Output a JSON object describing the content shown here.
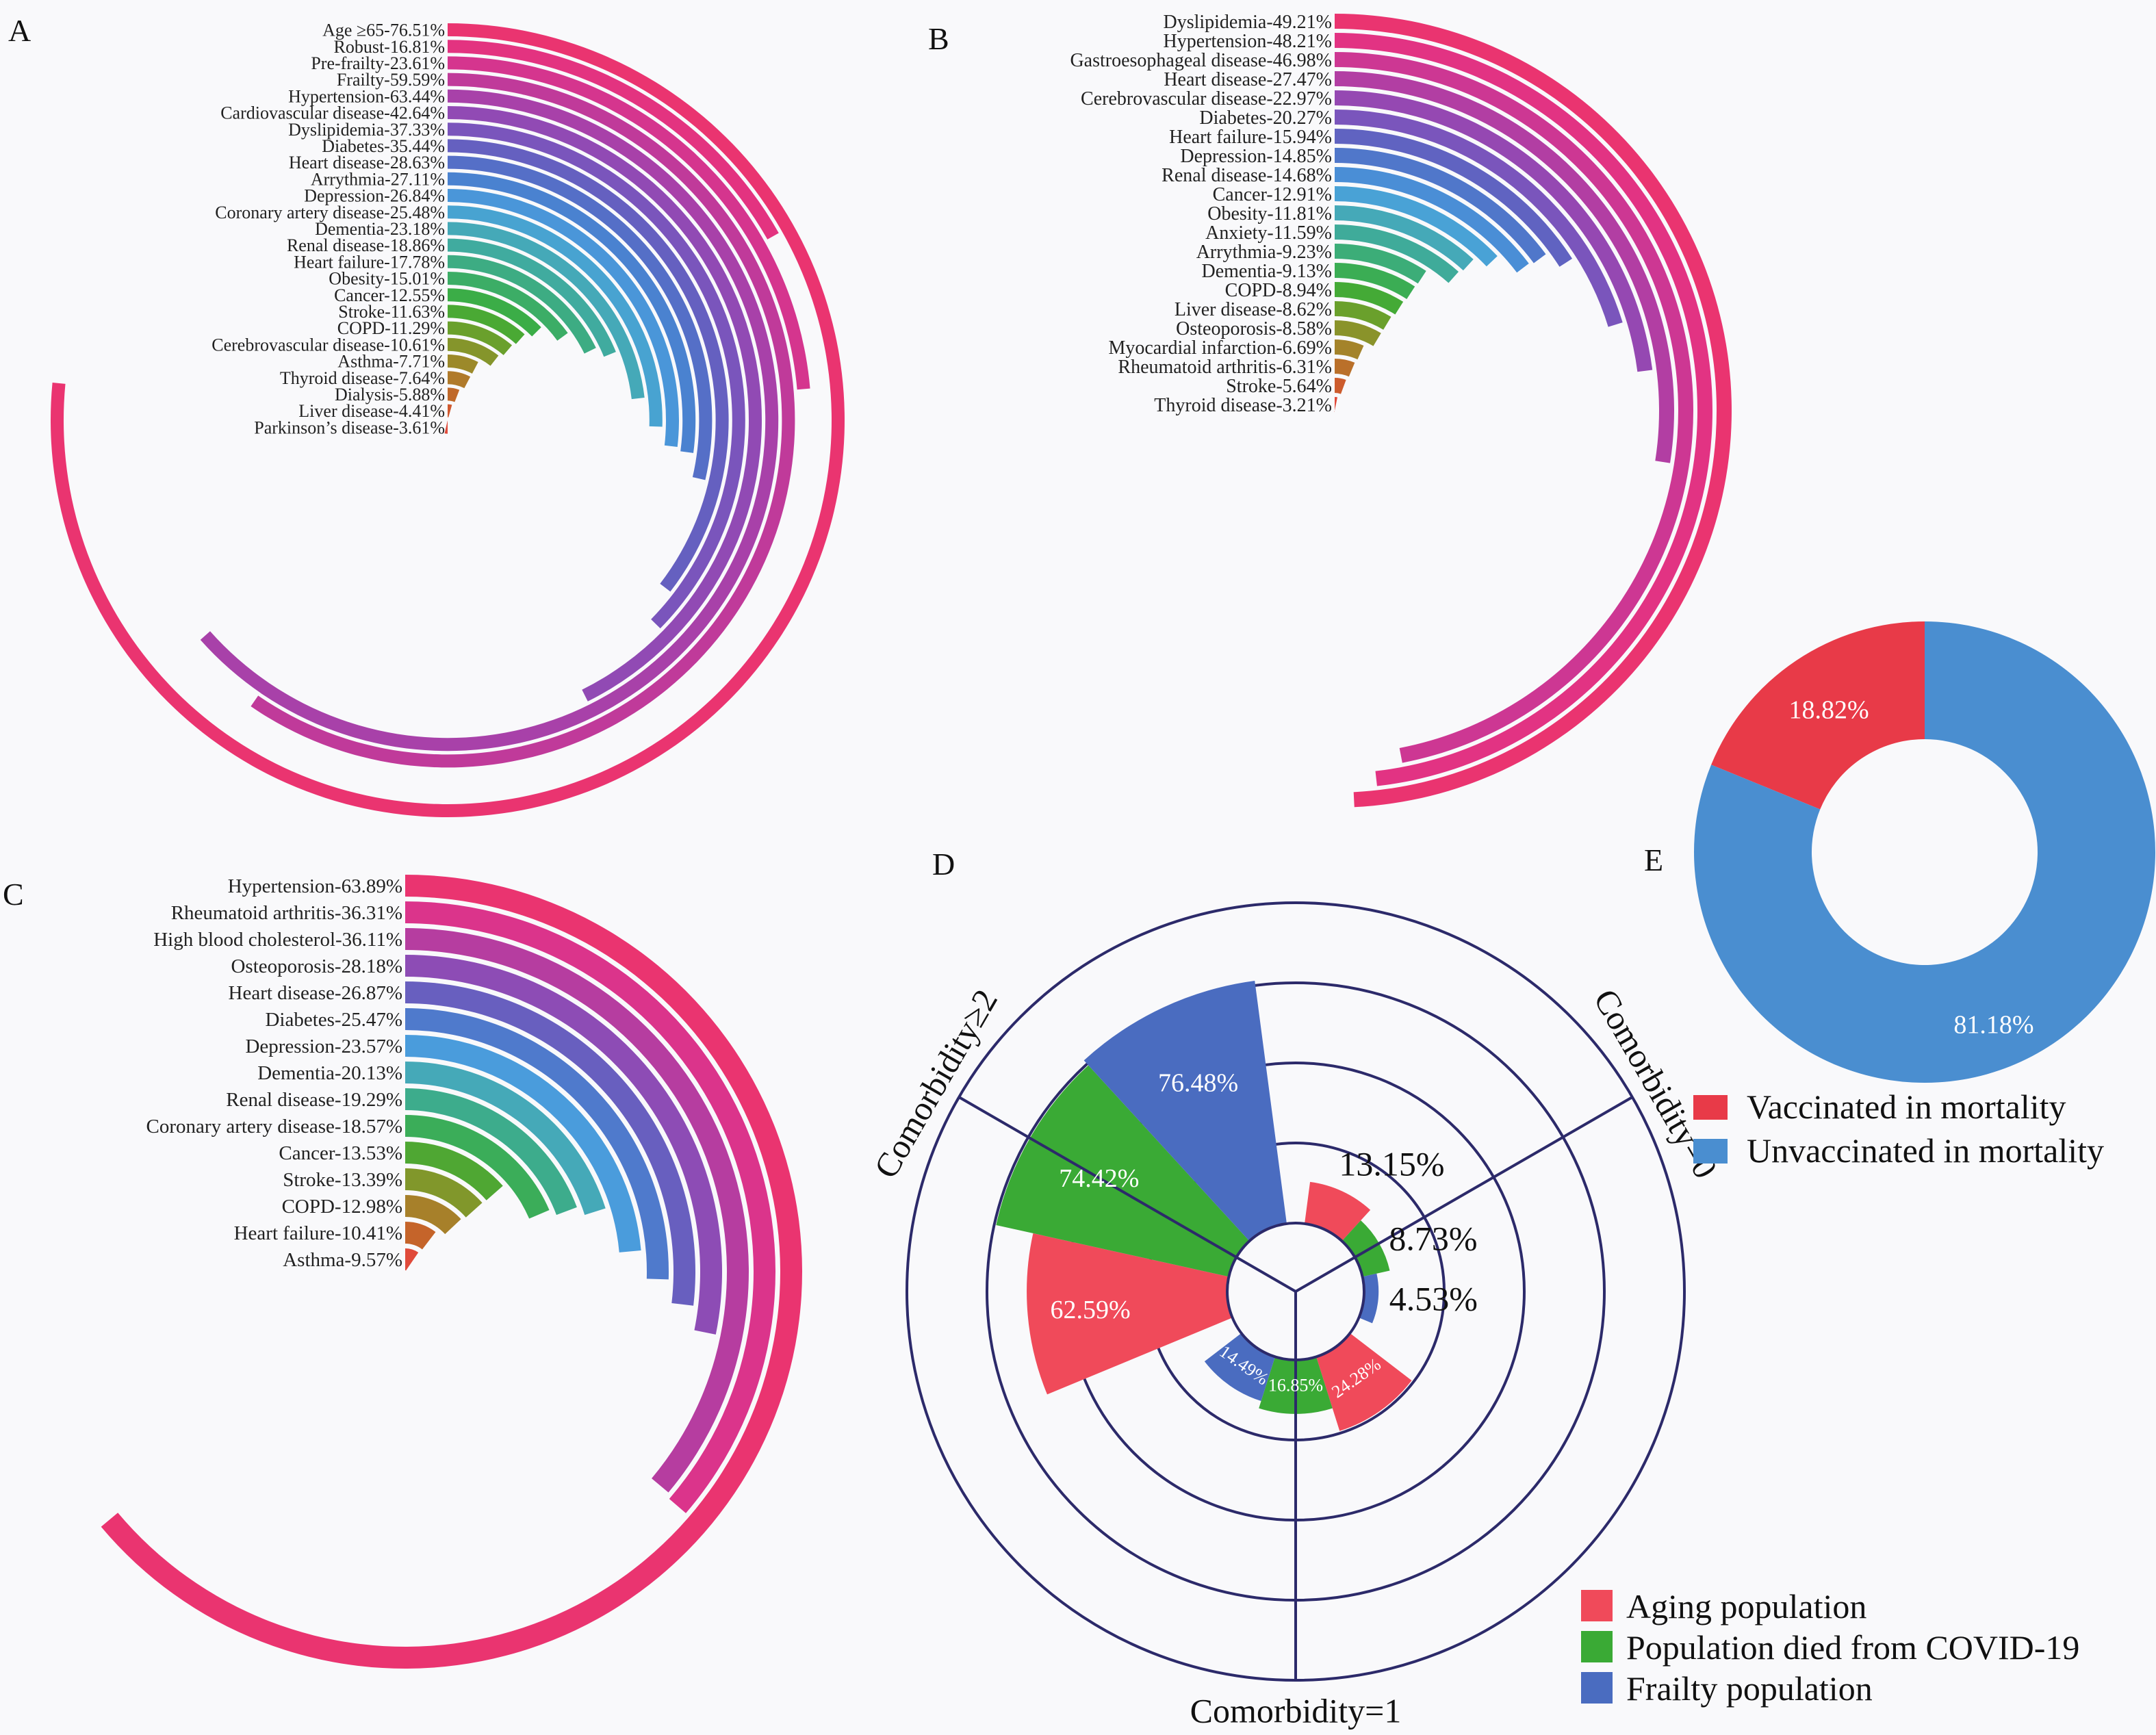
{
  "chart_data": [
    {
      "panel": "A",
      "type": "bar",
      "layout": "radial",
      "ylim": [
        0,
        100
      ],
      "labels": [
        "Age ≥65-76.51%",
        "Robust-16.81%",
        "Pre-frailty-23.61%",
        "Frailty-59.59%",
        "Hypertension-63.44%",
        "Cardiovascular disease-42.64%",
        "Dyslipidemia-37.33%",
        "Diabetes-35.44%",
        "Heart disease-28.63%",
        "Arrythmia-27.11%",
        "Depression-26.84%",
        "Coronary artery disease-25.48%",
        "Dementia-23.18%",
        "Renal disease-18.86%",
        "Heart failure-17.78%",
        "Obesity-15.01%",
        "Cancer-12.55%",
        "Stroke-11.63%",
        "COPD-11.29%",
        "Cerebrovascular disease-10.61%",
        "Asthma-7.71%",
        "Thyroid disease-7.64%",
        "Dialysis-5.88%",
        "Liver disease-4.41%",
        "Parkinson’s disease-3.61%"
      ],
      "categories": [
        "Age ≥65",
        "Robust",
        "Pre-frailty",
        "Frailty",
        "Hypertension",
        "Cardiovascular disease",
        "Dyslipidemia",
        "Diabetes",
        "Heart disease",
        "Arrythmia",
        "Depression",
        "Coronary artery disease",
        "Dementia",
        "Renal disease",
        "Heart failure",
        "Obesity",
        "Cancer",
        "Stroke",
        "COPD",
        "Cerebrovascular disease",
        "Asthma",
        "Thyroid disease",
        "Dialysis",
        "Liver disease",
        "Parkinson’s disease"
      ],
      "values": [
        76.51,
        16.81,
        23.61,
        59.59,
        63.44,
        42.64,
        37.33,
        35.44,
        28.63,
        27.11,
        26.84,
        25.48,
        23.18,
        18.86,
        17.78,
        15.01,
        12.55,
        11.63,
        11.29,
        10.61,
        7.71,
        7.64,
        5.88,
        4.41,
        3.61
      ]
    },
    {
      "panel": "B",
      "type": "bar",
      "layout": "radial",
      "ylim": [
        0,
        100
      ],
      "labels": [
        "Dyslipidemia-49.21%",
        "Hypertension-48.21%",
        "Gastroesophageal disease-46.98%",
        "Heart disease-27.47%",
        "Cerebrovascular disease-22.97%",
        "Diabetes-20.27%",
        "Heart failure-15.94%",
        "Depression-14.85%",
        "Renal disease-14.68%",
        "Cancer-12.91%",
        "Obesity-11.81%",
        "Anxiety-11.59%",
        "Arrythmia-9.23%",
        "Dementia-9.13%",
        "COPD-8.94%",
        "Liver disease-8.62%",
        "Osteoporosis-8.58%",
        "Myocardial infarction-6.69%",
        "Rheumatoid arthritis-6.31%",
        "Stroke-5.64%",
        "Thyroid disease-3.21%"
      ],
      "categories": [
        "Dyslipidemia",
        "Hypertension",
        "Gastroesophageal disease",
        "Heart disease",
        "Cerebrovascular disease",
        "Diabetes",
        "Heart failure",
        "Depression",
        "Renal disease",
        "Cancer",
        "Obesity",
        "Anxiety",
        "Arrythmia",
        "Dementia",
        "COPD",
        "Liver disease",
        "Osteoporosis",
        "Myocardial infarction",
        "Rheumatoid arthritis",
        "Stroke",
        "Thyroid disease"
      ],
      "values": [
        49.21,
        48.21,
        46.98,
        27.47,
        22.97,
        20.27,
        15.94,
        14.85,
        14.68,
        12.91,
        11.81,
        11.59,
        9.23,
        9.13,
        8.94,
        8.62,
        8.58,
        6.69,
        6.31,
        5.64,
        3.21
      ]
    },
    {
      "panel": "C",
      "type": "bar",
      "layout": "radial",
      "ylim": [
        0,
        100
      ],
      "labels": [
        "Hypertension-63.89%",
        "Rheumatoid arthritis-36.31%",
        "High blood cholesterol-36.11%",
        "Osteoporosis-28.18%",
        "Heart disease-26.87%",
        "Diabetes-25.47%",
        "Depression-23.57%",
        "Dementia-20.13%",
        "Renal disease-19.29%",
        "Coronary artery disease-18.57%",
        "Cancer-13.53%",
        "Stroke-13.39%",
        "COPD-12.98%",
        "Heart failure-10.41%",
        "Asthma-9.57%"
      ],
      "categories": [
        "Hypertension",
        "Rheumatoid arthritis",
        "High blood cholesterol",
        "Osteoporosis",
        "Heart disease",
        "Diabetes",
        "Depression",
        "Dementia",
        "Renal disease",
        "Coronary artery disease",
        "Cancer",
        "Stroke",
        "COPD",
        "Heart failure",
        "Asthma"
      ],
      "values": [
        63.89,
        36.31,
        36.11,
        28.18,
        26.87,
        25.47,
        23.57,
        20.13,
        19.29,
        18.57,
        13.53,
        13.39,
        12.98,
        10.41,
        9.57
      ]
    },
    {
      "panel": "D",
      "type": "bar",
      "layout": "polar",
      "ylim": [
        0,
        100
      ],
      "grid": true,
      "categories": [
        "Comorbidity=0",
        "Comorbidity=1",
        "Comorbidity≥2"
      ],
      "series": [
        {
          "name": "Aging population",
          "color": "#f04a5a",
          "values": [
            13.15,
            24.28,
            62.59
          ],
          "labels": [
            "13.15%",
            "24.28%",
            "62.59%"
          ]
        },
        {
          "name": "Population died from COVID-19",
          "color": "#3aaa35",
          "values": [
            8.73,
            16.85,
            74.42
          ],
          "labels": [
            "8.73%",
            "16.85%",
            "74.42%"
          ]
        },
        {
          "name": "Frailty population",
          "color": "#4a6cc0",
          "values": [
            4.53,
            14.49,
            76.48
          ],
          "labels": [
            "4.53%",
            "14.49%",
            "76.48%"
          ]
        }
      ],
      "legend": "bottom-right"
    },
    {
      "panel": "E",
      "type": "pie",
      "donut": true,
      "categories": [
        "Vaccinated in mortality",
        "Unvaccinated in mortality"
      ],
      "values": [
        18.82,
        81.18
      ],
      "labels": [
        "18.82%",
        "81.18%"
      ],
      "colors": [
        "#e83a48",
        "#4a8ed0"
      ],
      "legend": "below"
    }
  ],
  "palette": [
    "#ea3470",
    "#e03388",
    "#c03a9a",
    "#9c45b0",
    "#7a55bc",
    "#5a66c2",
    "#4a82d0",
    "#4aa0de",
    "#45a9b8",
    "#3dac92",
    "#3cad66",
    "#3aad38",
    "#6aa02c",
    "#92902a",
    "#b07a2a",
    "#c8602a",
    "#e04a3a"
  ],
  "colors": {
    "background": "#f9f9fb",
    "grid": "#2c2a6a"
  }
}
